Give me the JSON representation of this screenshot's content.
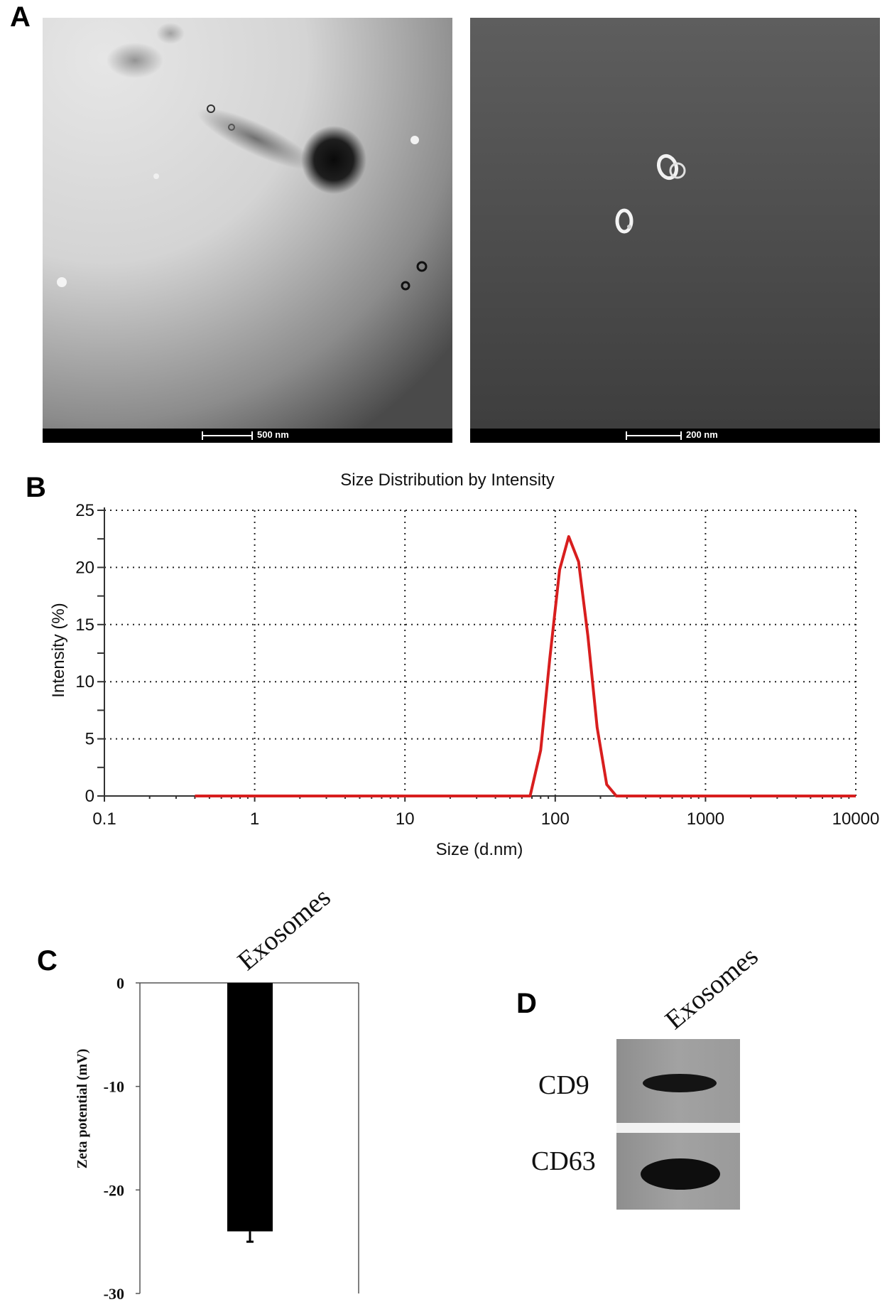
{
  "panels": {
    "a": {
      "letter": "A",
      "images": [
        {
          "scale_label": "500 nm"
        },
        {
          "scale_label": "200 nm"
        }
      ]
    },
    "b": {
      "letter": "B"
    },
    "c": {
      "letter": "C"
    },
    "d": {
      "letter": "D",
      "lane_label": "Exosomes",
      "bands": [
        "CD9",
        "CD63"
      ]
    }
  },
  "chart_data": [
    {
      "type": "line",
      "title": "Size Distribution by Intensity",
      "xlabel": "Size (d.nm)",
      "ylabel": "Intensity (%)",
      "x_scale": "log",
      "xlim": [
        0.1,
        10000
      ],
      "ylim": [
        0,
        25
      ],
      "x_ticks": [
        "0.1",
        "1",
        "10",
        "100",
        "1000",
        "10000"
      ],
      "y_ticks": [
        "0",
        "5",
        "10",
        "15",
        "20",
        "25"
      ],
      "grid": true,
      "series": [
        {
          "color": "#d81e1e",
          "x": [
            0.4,
            1,
            10,
            50,
            68,
            80,
            92,
            107,
            123,
            143,
            165,
            190,
            220,
            255,
            300,
            1000,
            10000
          ],
          "y": [
            0,
            0,
            0,
            0,
            0,
            4,
            12,
            19.8,
            22.7,
            20.5,
            14,
            6,
            1,
            0,
            0,
            0,
            0
          ]
        }
      ]
    },
    {
      "type": "bar",
      "categories": [
        "Exosomes"
      ],
      "values": [
        -24
      ],
      "error": [
        1
      ],
      "ylabel": "Zeta potential  (mV)",
      "ylim": [
        -30,
        0
      ],
      "y_ticks": [
        "0",
        "-10",
        "-20",
        "-30"
      ],
      "bar_color": "#000000"
    }
  ]
}
